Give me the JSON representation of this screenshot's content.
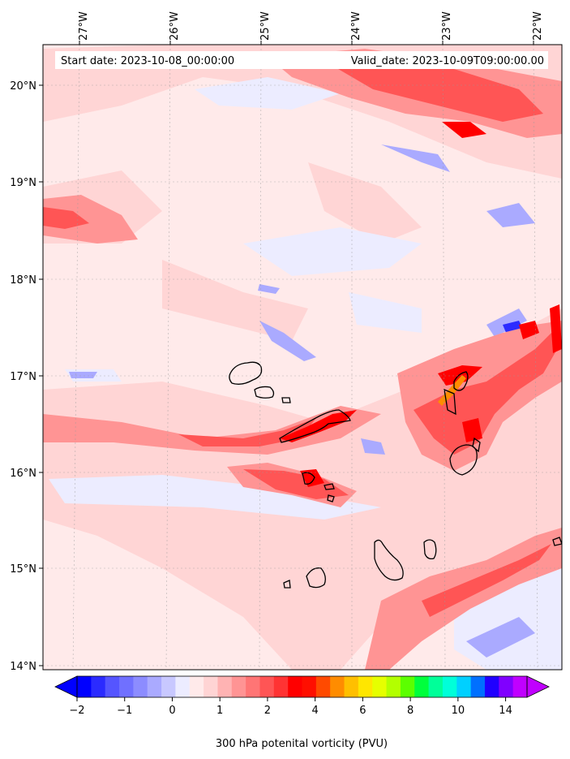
{
  "header": {
    "start_date": "Start date: 2023-10-08_00:00:00",
    "valid_date": "Valid_date: 2023-10-09T09:00:00.00"
  },
  "axes": {
    "lon_labels": [
      "27°W",
      "26°W",
      "25°W",
      "24°W",
      "23°W",
      "22°W"
    ],
    "lat_labels": [
      "20°N",
      "19°N",
      "18°N",
      "17°N",
      "16°N",
      "15°N",
      "14°N"
    ]
  },
  "colorbar": {
    "title": "300 hPa potenital vorticity (PVU)",
    "tick_labels": [
      "−2",
      "−1",
      "0",
      "1",
      "2",
      "4",
      "6",
      "8",
      "10",
      "14"
    ],
    "colors": [
      "#0000ff",
      "#2b2bff",
      "#5555ff",
      "#7070ff",
      "#8c8cff",
      "#aaaaff",
      "#c8c8ff",
      "#ececff",
      "#ffeaea",
      "#ffd4d4",
      "#ffb3b3",
      "#ff9494",
      "#ff7575",
      "#ff5555",
      "#ff3333",
      "#ff0000",
      "#ff0f00",
      "#ff4a00",
      "#ff8c00",
      "#ffbf00",
      "#ffe600",
      "#e6ff00",
      "#b3ff00",
      "#5cff00",
      "#00ff3c",
      "#00ff99",
      "#00ffd9",
      "#00d0ff",
      "#0070ff",
      "#2000ff",
      "#8000ff",
      "#c000ff"
    ]
  },
  "chart_data": {
    "type": "heatmap",
    "variable": "300 hPa potenital vorticity (PVU)",
    "lon_range": [
      -27.35,
      -21.6
    ],
    "lat_range": [
      13.95,
      20.4
    ],
    "colorbar_ticks": [
      -2,
      -1,
      0,
      1,
      2,
      4,
      6,
      8,
      10,
      14
    ],
    "colors": {
      "background": "#ffeaea",
      "light_pink": "#ffd4d4",
      "mid_red": "#ff7575",
      "strong_red": "#ff0000",
      "negative_blue": "#5555ff",
      "coastline": "#000000"
    }
  }
}
